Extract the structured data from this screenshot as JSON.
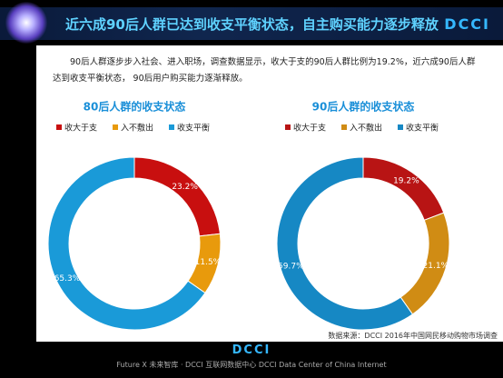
{
  "header": {
    "title": "近六成90后人群已达到收支平衡状态，自主购买能力逐步释放",
    "logo": "DCCI"
  },
  "body_text": "90后人群逐步步入社会、进入职场，调查数据显示，收大于支的90后人群比例为19.2%，近六成90后人群达到收支平衡状态， 90后用户购买能力逐渐释放。",
  "chart_data": [
    {
      "type": "donut",
      "title": "80后人群的收支状态",
      "categories": [
        "收大于支",
        "入不敷出",
        "收支平衡"
      ],
      "values": [
        23.2,
        11.5,
        65.3
      ],
      "value_labels": [
        "23.2%",
        "11.5%",
        "65.3%"
      ],
      "colors": [
        "#c80f0f",
        "#e89a0c",
        "#1a9ad8"
      ]
    },
    {
      "type": "donut",
      "title": "90后人群的收支状态",
      "categories": [
        "收大于支",
        "入不敷出",
        "收支平衡"
      ],
      "values": [
        19.2,
        21.1,
        59.7
      ],
      "value_labels": [
        "19.2%",
        "21.1%",
        "59.7%"
      ],
      "colors": [
        "#b81414",
        "#d08c14",
        "#1688c4"
      ]
    }
  ],
  "source": "数据来源：DCCI 2016年中国网民移动购物市场调查",
  "footer": {
    "logo": "DCCI",
    "text": "Future X 未来智库 · DCCI 互联网数据中心  DCCI Data Center of China Internet"
  }
}
